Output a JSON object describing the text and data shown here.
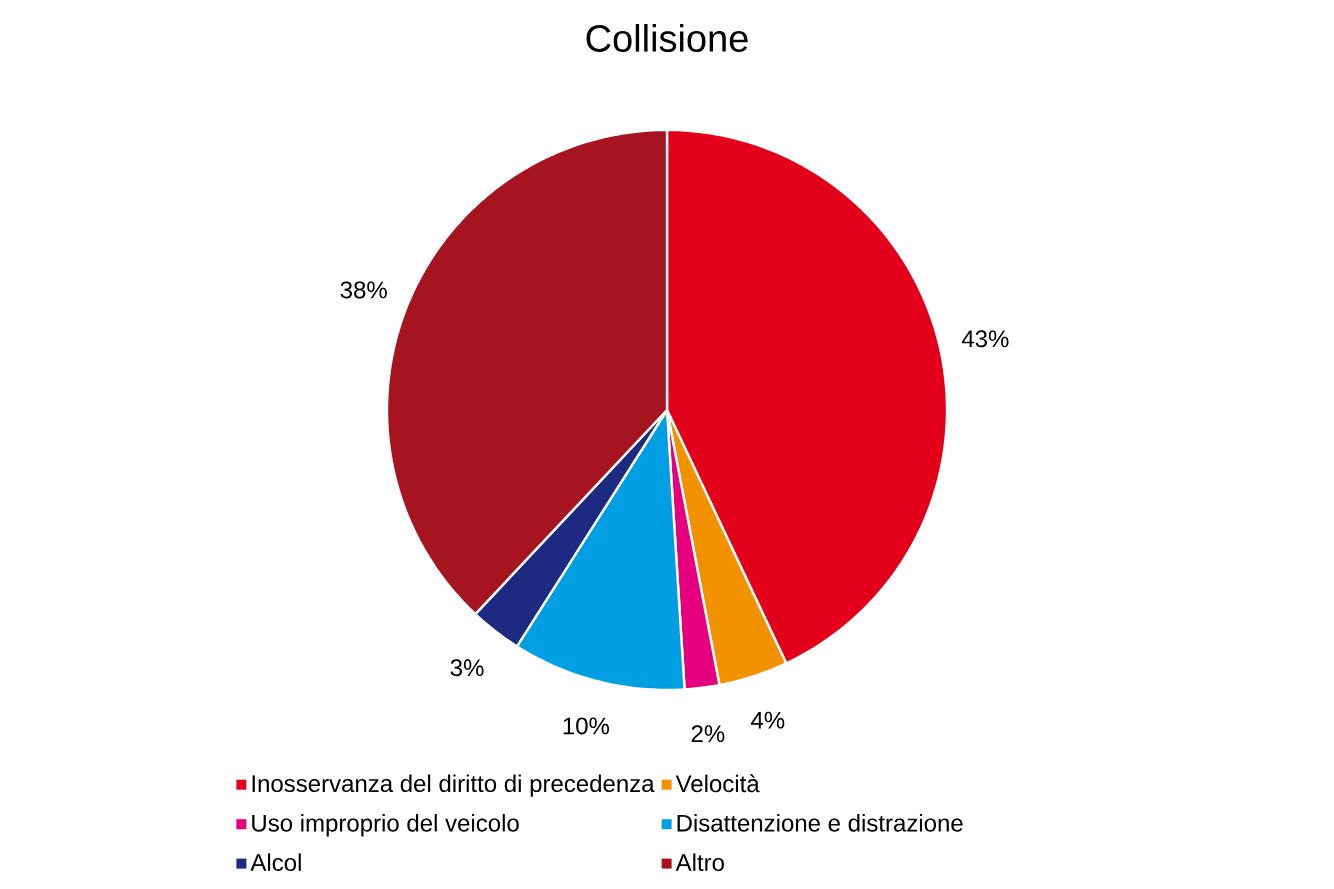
{
  "chart_data": {
    "type": "pie",
    "title": "Collisione",
    "categories": [
      "Inosservanza del diritto di precedenza",
      "Velocità",
      "Uso improprio del veicolo",
      "Disattenzione e distrazione",
      "Alcol",
      "Altro"
    ],
    "values": [
      43,
      4,
      2,
      10,
      3,
      38
    ],
    "colors": [
      "#e2001a",
      "#f39200",
      "#e6007e",
      "#009fe3",
      "#1d2a82",
      "#a61420"
    ],
    "value_labels": [
      "43%",
      "4%",
      "2%",
      "10%",
      "3%",
      "38%"
    ],
    "legend": "bottom"
  }
}
